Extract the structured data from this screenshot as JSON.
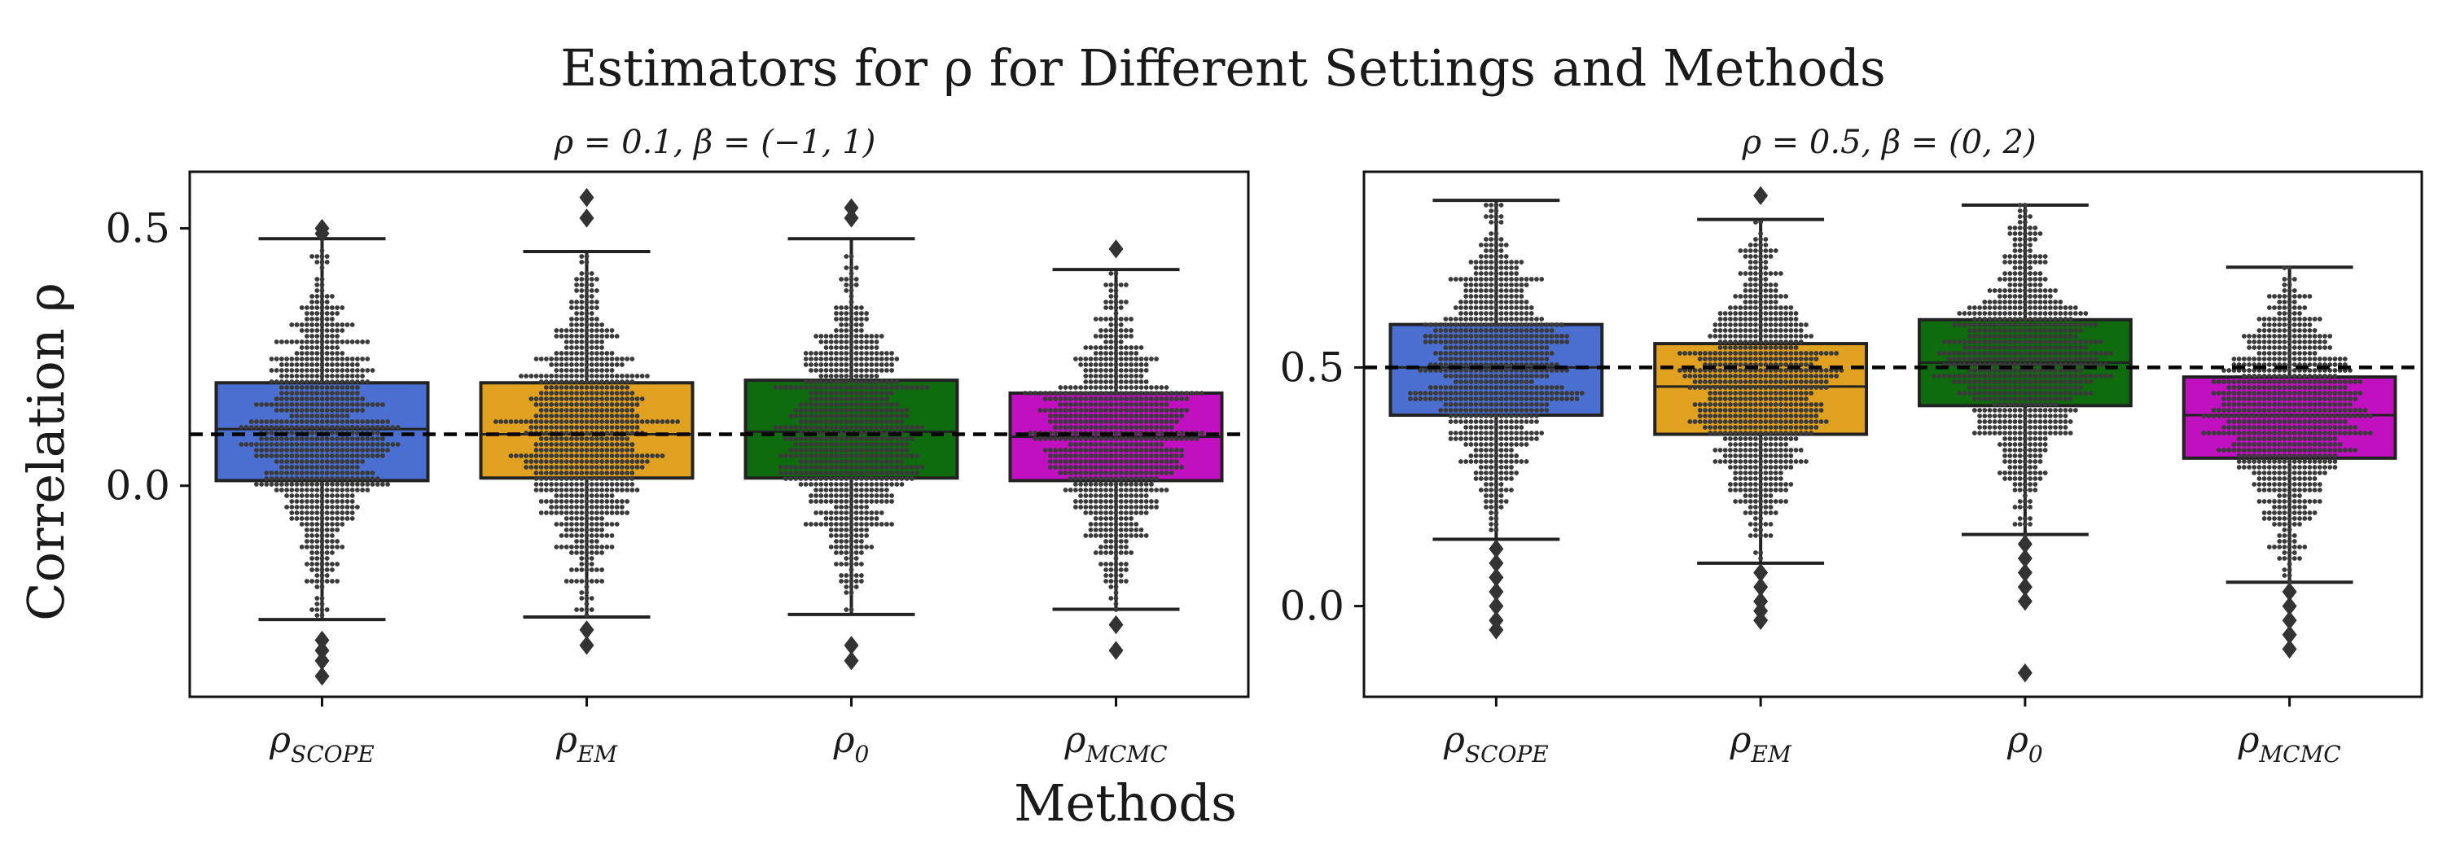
{
  "figure": {
    "title": "Estimators for ρ for Different Settings and Methods",
    "xlabel": "Methods",
    "ylabel": "Correlation ρ"
  },
  "colors": {
    "scope": "#4a6fd0",
    "em": "#e0a020",
    "zero": "#0e6b0e",
    "mcmc": "#c010c0",
    "dots": "#3a3a3a",
    "ref_line": "#000000"
  },
  "chart_data": [
    {
      "type": "box",
      "title": "ρ = 0.1, β = (−1, 1)",
      "categories": [
        "ρ_SCOPE",
        "ρ_EM",
        "ρ_0",
        "ρ_MCMC"
      ],
      "category_labels": [
        {
          "base": "ρ",
          "sub": "SCOPE"
        },
        {
          "base": "ρ",
          "sub": "EM"
        },
        {
          "base": "ρ",
          "sub": "0"
        },
        {
          "base": "ρ",
          "sub": "MCMC"
        }
      ],
      "ylim": [
        -0.41,
        0.61
      ],
      "yticks": [
        0.0,
        0.5
      ],
      "ytick_labels": [
        "0.0",
        "0.5"
      ],
      "reference_line": 0.1,
      "boxes": [
        {
          "name": "ρ_SCOPE",
          "color_key": "scope",
          "q1": 0.01,
          "median": 0.11,
          "q3": 0.2,
          "whisker_low": -0.26,
          "whisker_high": 0.48,
          "outliers": [
            -0.3,
            -0.32,
            -0.34,
            -0.37,
            0.49,
            0.5
          ]
        },
        {
          "name": "ρ_EM",
          "color_key": "em",
          "q1": 0.015,
          "median": 0.1,
          "q3": 0.2,
          "whisker_low": -0.255,
          "whisker_high": 0.455,
          "outliers": [
            -0.28,
            -0.31,
            0.52,
            0.56
          ]
        },
        {
          "name": "ρ_0",
          "color_key": "zero",
          "q1": 0.015,
          "median": 0.105,
          "q3": 0.205,
          "whisker_low": -0.25,
          "whisker_high": 0.48,
          "outliers": [
            -0.31,
            -0.34,
            0.52,
            0.54
          ]
        },
        {
          "name": "ρ_MCMC",
          "color_key": "mcmc",
          "q1": 0.01,
          "median": 0.095,
          "q3": 0.18,
          "whisker_low": -0.24,
          "whisker_high": 0.42,
          "outliers": [
            -0.27,
            -0.32,
            0.46
          ]
        }
      ]
    },
    {
      "type": "box",
      "title": "ρ = 0.5, β = (0, 2)",
      "categories": [
        "ρ_SCOPE",
        "ρ_EM",
        "ρ_0",
        "ρ_MCMC"
      ],
      "category_labels": [
        {
          "base": "ρ",
          "sub": "SCOPE"
        },
        {
          "base": "ρ",
          "sub": "EM"
        },
        {
          "base": "ρ",
          "sub": "0"
        },
        {
          "base": "ρ",
          "sub": "MCMC"
        }
      ],
      "ylim": [
        -0.19,
        0.91
      ],
      "yticks": [
        0.0,
        0.5
      ],
      "ytick_labels": [
        "0.0",
        "0.5"
      ],
      "reference_line": 0.5,
      "boxes": [
        {
          "name": "ρ_SCOPE",
          "color_key": "scope",
          "q1": 0.4,
          "median": 0.5,
          "q3": 0.59,
          "whisker_low": 0.14,
          "whisker_high": 0.85,
          "outliers": [
            0.12,
            0.09,
            0.06,
            0.03,
            0.0,
            -0.03,
            -0.05
          ]
        },
        {
          "name": "ρ_EM",
          "color_key": "em",
          "q1": 0.36,
          "median": 0.46,
          "q3": 0.55,
          "whisker_low": 0.09,
          "whisker_high": 0.81,
          "outliers": [
            0.07,
            0.04,
            0.01,
            -0.01,
            -0.03,
            0.86
          ]
        },
        {
          "name": "ρ_0",
          "color_key": "zero",
          "q1": 0.42,
          "median": 0.51,
          "q3": 0.6,
          "whisker_low": 0.15,
          "whisker_high": 0.84,
          "outliers": [
            0.13,
            0.1,
            0.07,
            0.04,
            0.01,
            -0.14
          ]
        },
        {
          "name": "ρ_MCMC",
          "color_key": "mcmc",
          "q1": 0.31,
          "median": 0.4,
          "q3": 0.48,
          "whisker_low": 0.05,
          "whisker_high": 0.71,
          "outliers": [
            0.03,
            0.0,
            -0.03,
            -0.06,
            -0.09
          ]
        }
      ]
    }
  ]
}
